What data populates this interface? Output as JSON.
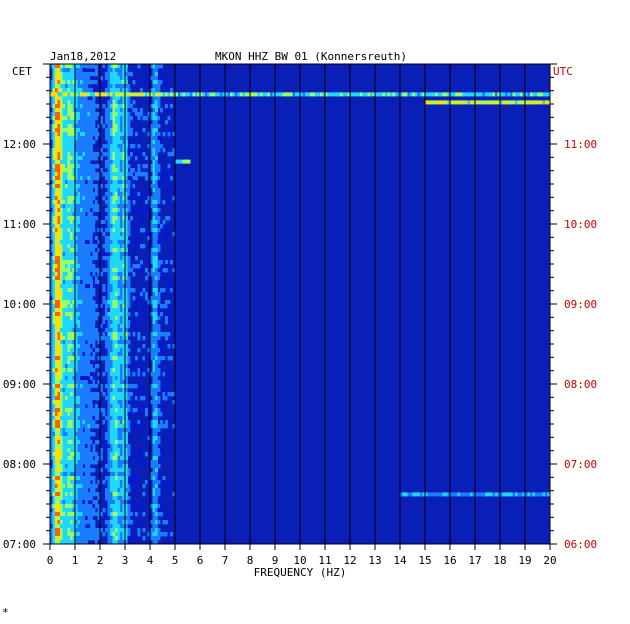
{
  "chart_data": {
    "type": "heatmap",
    "date": "Jan18,2012",
    "title": "MKON HHZ BW 01 (Konnersreuth)",
    "left_axis_title": "CET",
    "right_axis_title": "UTC",
    "xlabel": "FREQUENCY (HZ)",
    "xlim": [
      0,
      20
    ],
    "x_ticks": [
      "0",
      "1",
      "2",
      "3",
      "4",
      "5",
      "6",
      "7",
      "8",
      "9",
      "10",
      "11",
      "12",
      "13",
      "14",
      "15",
      "16",
      "17",
      "18",
      "19",
      "20"
    ],
    "left_time_ticks": [
      "07:00",
      "08:00",
      "09:00",
      "10:00",
      "11:00",
      "12:00"
    ],
    "right_time_ticks": [
      "06:00",
      "07:00",
      "08:00",
      "09:00",
      "10:00",
      "11:00"
    ],
    "time_range_cet": [
      "07:00",
      "13:00"
    ],
    "grid": true,
    "colormap": [
      "#00007a",
      "#0018d8",
      "#1a7cff",
      "#20d8ff",
      "#9cff60",
      "#ffe000",
      "#ff6000",
      "#c00000"
    ],
    "background_color": "#0a1fb8",
    "accent_colors": {
      "utc": "#cc0000"
    },
    "footer_mark": "*"
  }
}
